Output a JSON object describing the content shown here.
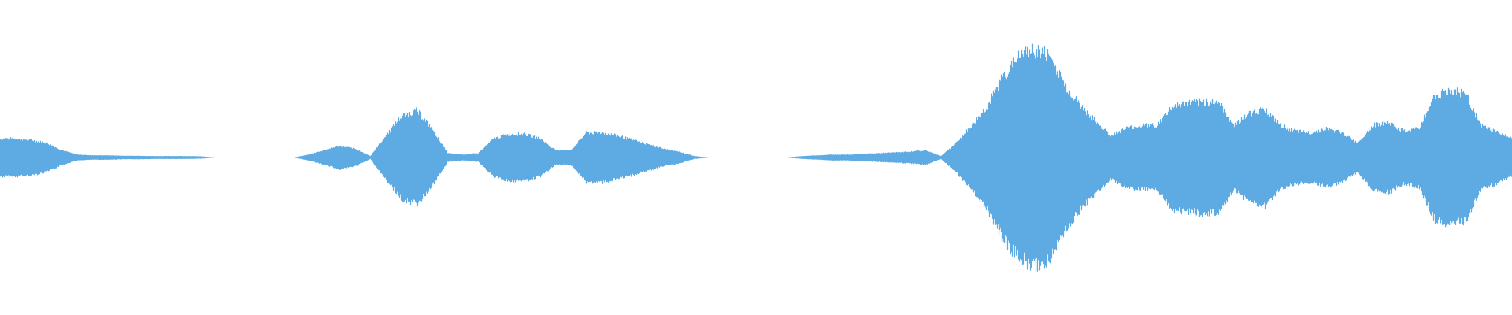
{
  "chart_data": {
    "type": "area",
    "description_kind": "audio waveform (symmetric amplitude envelope)",
    "title": "",
    "xlabel": "",
    "ylabel": "",
    "grid": false,
    "legend": "none",
    "ylim": [
      -1,
      1
    ],
    "color": "#5DABE2",
    "background": "#FFFFFF",
    "envelope": [
      0.13,
      0.13,
      0.12,
      0.1,
      0.05,
      0.02,
      0.015,
      0.015,
      0.012,
      0.012,
      0.01,
      0.01,
      0.01,
      0.008,
      0,
      0,
      0,
      0,
      0,
      0,
      0.02,
      0.05,
      0.08,
      0.06,
      0.01,
      0.15,
      0.28,
      0.32,
      0.2,
      0.03,
      0.02,
      0.03,
      0.13,
      0.16,
      0.16,
      0.13,
      0.05,
      0.05,
      0.17,
      0.17,
      0.15,
      0.12,
      0.09,
      0.06,
      0.04,
      0.01,
      0,
      0,
      0,
      0,
      0,
      0,
      0.01,
      0.015,
      0.02,
      0.02,
      0.025,
      0.03,
      0.035,
      0.04,
      0.05,
      0.01,
      0.1,
      0.22,
      0.35,
      0.55,
      0.68,
      0.74,
      0.7,
      0.5,
      0.36,
      0.25,
      0.15,
      0.2,
      0.22,
      0.22,
      0.35,
      0.37,
      0.38,
      0.38,
      0.22,
      0.3,
      0.33,
      0.22,
      0.18,
      0.17,
      0.2,
      0.17,
      0.1,
      0.22,
      0.24,
      0.18,
      0.2,
      0.42,
      0.46,
      0.44,
      0.22,
      0.18,
      0.13
    ]
  }
}
